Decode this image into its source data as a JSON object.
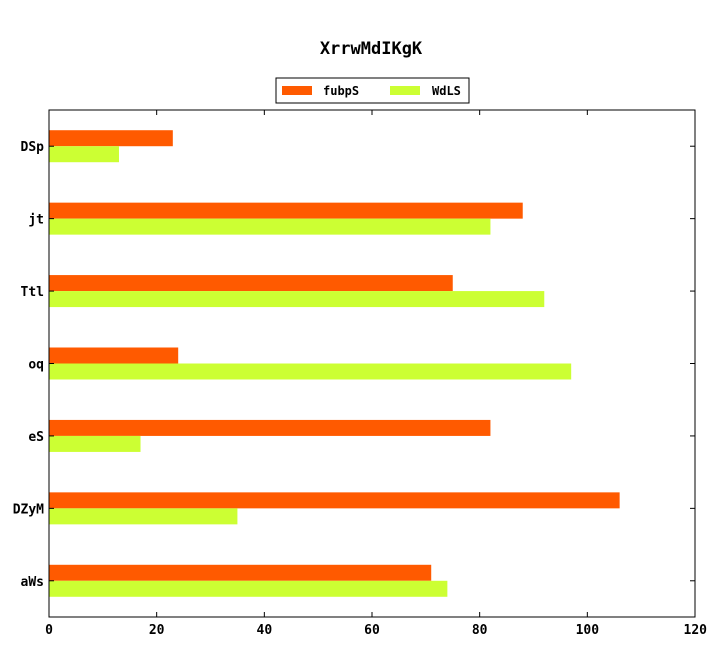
{
  "chart_data": {
    "type": "bar",
    "orientation": "horizontal",
    "title": "XrrwMdIKgK",
    "xlabel": "",
    "ylabel": "",
    "categories": [
      "DSp",
      "jt",
      "Ttl",
      "oq",
      "eS",
      "DZyM",
      "aWs"
    ],
    "series": [
      {
        "name": "fubpS",
        "color": "#ff5a00",
        "values": [
          23,
          88,
          75,
          24,
          82,
          106,
          71
        ]
      },
      {
        "name": "WdLS",
        "color": "#ccff33",
        "values": [
          13,
          82,
          92,
          97,
          17,
          35,
          74
        ]
      }
    ],
    "xlim": [
      0,
      120
    ],
    "xticks": [
      "0",
      "20",
      "40",
      "60",
      "80",
      "100",
      "120"
    ],
    "grid": false,
    "legend_position": "top-center"
  }
}
